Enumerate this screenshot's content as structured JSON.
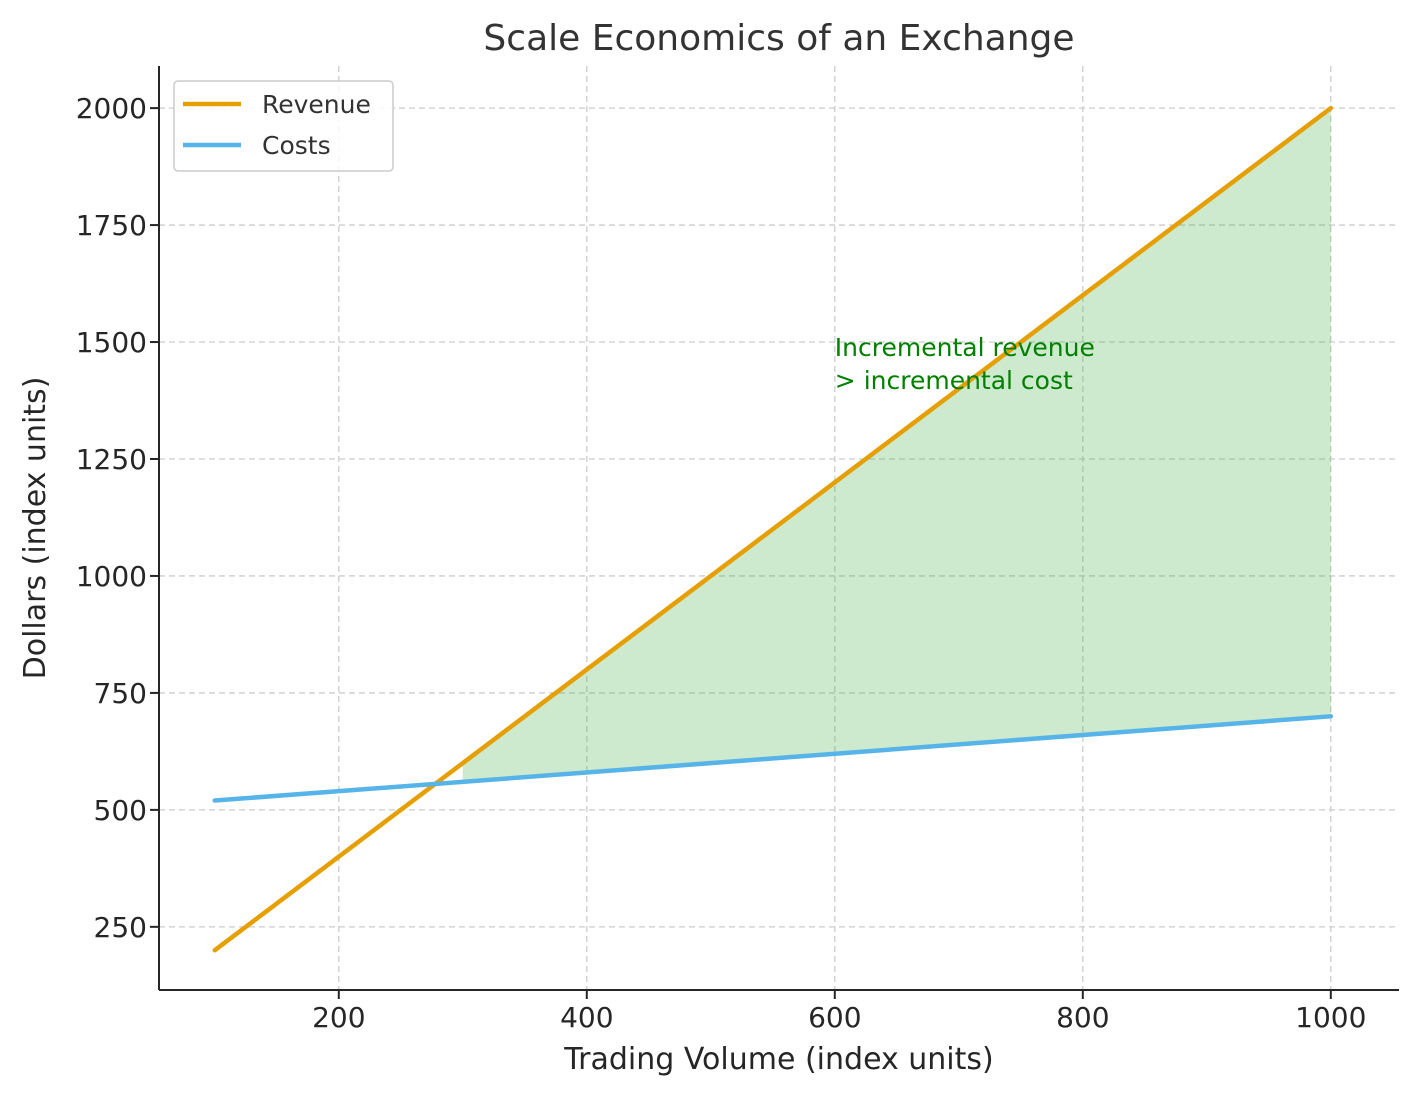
{
  "chart_data": {
    "type": "line",
    "title": "Scale Economics of an Exchange",
    "xlabel": "Trading Volume (index units)",
    "ylabel": "Dollars (index units)",
    "xlim": [
      55,
      1055
    ],
    "ylim": [
      115,
      2090
    ],
    "xticks": [
      200,
      400,
      600,
      800,
      1000
    ],
    "yticks": [
      250,
      500,
      750,
      1000,
      1250,
      1500,
      1750,
      2000
    ],
    "grid": true,
    "legend_position": "top-left",
    "series": [
      {
        "name": "Revenue",
        "color": "#E69F00",
        "x": [
          100,
          1000
        ],
        "y": [
          200,
          2000
        ]
      },
      {
        "name": "Costs",
        "color": "#56B4E9",
        "x": [
          100,
          1000
        ],
        "y": [
          520,
          700
        ]
      }
    ],
    "shaded_region": {
      "x_from": 300,
      "x_to": 1000,
      "color": "#4CAF50",
      "between": [
        "Revenue",
        "Costs"
      ]
    },
    "annotation": {
      "lines": [
        "Incremental revenue",
        "> incremental cost"
      ],
      "x": 600,
      "y": 1500,
      "color": "#008000"
    }
  }
}
